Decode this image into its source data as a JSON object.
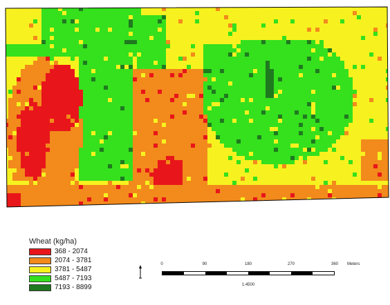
{
  "legend": {
    "title": "Wheat (kg/ha)",
    "classes": [
      {
        "label": "368 - 2074",
        "color": "#e8161a"
      },
      {
        "label": "2074 - 3781",
        "color": "#f28a1c"
      },
      {
        "label": "3781 - 5487",
        "color": "#f7f21f"
      },
      {
        "label": "5487 - 7193",
        "color": "#35e01d"
      },
      {
        "label": "7193 - 8899",
        "color": "#1f7a1f"
      }
    ]
  },
  "scale_bar": {
    "ticks": [
      "0",
      "90",
      "180",
      "270",
      "360"
    ],
    "units": "Meters",
    "ratio": "1:4500"
  }
}
